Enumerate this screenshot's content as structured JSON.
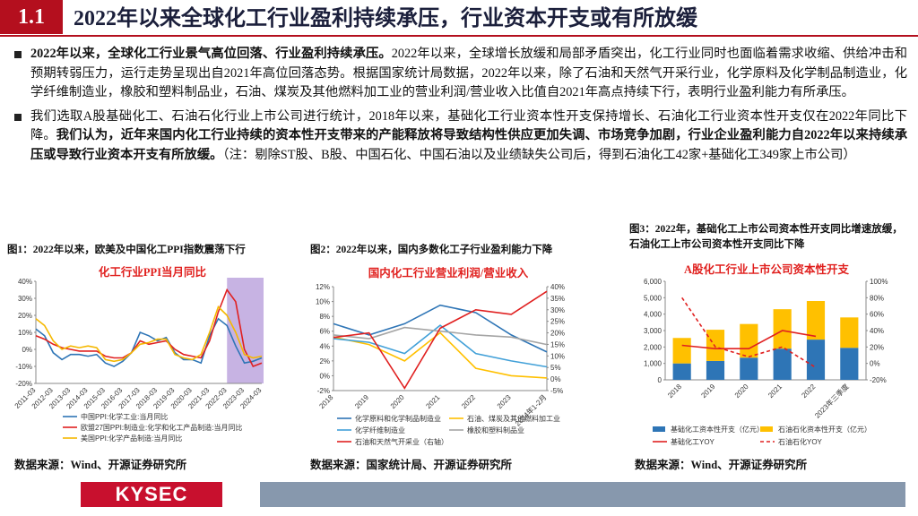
{
  "header": {
    "number": "1.1",
    "title": "2022年以来全球化工行业盈利持续承压，行业资本开支或有所放缓"
  },
  "bullets": [
    {
      "runs": [
        {
          "text": "2022年以来，全球化工行业景气高位回落、行业盈利持续承压。",
          "bold": true
        },
        {
          "text": "2022年以来，全球增长放缓和局部矛盾突出，化工行业同时也面临着需求收缩、供给冲击和预期转弱压力，运行走势呈现出自2021年高位回落态势。根据国家统计局数据，2022年以来，除了石油和天然气开采行业，化学原料及化学制品制造业，化学纤维制造业，橡胶和塑料制品业，石油、煤炭及其他燃料加工业的营业利润/营业收入比值自2021年高点持续下行，表明行业盈利能力有所承压。",
          "bold": false
        }
      ]
    },
    {
      "runs": [
        {
          "text": "我们选取A股基础化工、石油石化行业上市公司进行统计，2018年以来，基础化工行业资本性开支保持增长、石油化工行业资本性开支仅在2022年同比下降。",
          "bold": false
        },
        {
          "text": "我们认为，近年来国内化工行业持续的资本性开支带来的产能释放将导致结构性供应更加失调、市场竞争加剧，行业企业盈利能力自2022年以来持续承压或导致行业资本开支有所放缓。",
          "bold": true
        },
        {
          "text": "（注：剔除ST股、B股、中国石化、中国石油以及业绩缺失公司后，得到石油化工42家+基础化工349家上市公司）",
          "bold": false
        }
      ]
    }
  ],
  "chart_data": [
    {
      "type": "line",
      "caption": "图1：2022年以来，欧美及中国化工PPI指数震荡下行",
      "title": "化工行业PPI当月同比",
      "categories": [
        "2011-03",
        null,
        "2012-03",
        null,
        "2013-03",
        null,
        "2014-03",
        null,
        "2015-03",
        null,
        "2016-03",
        null,
        "2017-03",
        null,
        "2018-03",
        null,
        "2019-03",
        null,
        "2020-03",
        null,
        "2021-03",
        null,
        "2022-03",
        null,
        "2023-03",
        null,
        "2024-03"
      ],
      "series": [
        {
          "name": "中国PPI:化学工业:当月同比",
          "color": "#2e75b6",
          "values": [
            12,
            8,
            -2,
            -6,
            -3,
            -3,
            -4,
            -3,
            -8,
            -10,
            -7,
            -2,
            10,
            8,
            5,
            7,
            -2,
            -6,
            -6,
            -8,
            8,
            18,
            14,
            2,
            -8,
            -7,
            -5
          ]
        },
        {
          "name": "欧盟27国PPI:制造业:化学和化工产品制造:当月同比",
          "color": "#e02020",
          "values": [
            8,
            6,
            3,
            1,
            0,
            -1,
            -1,
            -1,
            -4,
            -5,
            -5,
            -2,
            5,
            3,
            4,
            5,
            0,
            -3,
            -4,
            -5,
            5,
            22,
            35,
            28,
            0,
            -10,
            -8
          ]
        },
        {
          "name": "美国PPI:化学产品制造:当月同比",
          "color": "#f5b800",
          "values": [
            18,
            14,
            5,
            0,
            2,
            1,
            2,
            1,
            -6,
            -7,
            -6,
            -2,
            3,
            4,
            6,
            6,
            -3,
            -5,
            -6,
            -3,
            10,
            25,
            20,
            10,
            -3,
            -5,
            -4
          ]
        }
      ],
      "highlight": {
        "from": "2022-03",
        "to": "2024-03",
        "color": "#c7b3e3"
      },
      "ylim": [
        -20,
        40
      ],
      "yticks": [
        {
          "value": -20,
          "label": "-20%"
        },
        {
          "value": -10,
          "label": "-10%"
        },
        {
          "value": 0,
          "label": "0%"
        },
        {
          "value": 10,
          "label": "10%"
        },
        {
          "value": 20,
          "label": "20%"
        },
        {
          "value": 30,
          "label": "30%"
        },
        {
          "value": 40,
          "label": "40%"
        }
      ],
      "grid": false,
      "source": "数据来源：Wind、开源证券研究所"
    },
    {
      "type": "line",
      "caption": "图2：2022年以来，国内多数化工子行业盈利能力下降",
      "title": "国内化工行业营业利润/营业收入",
      "categories": [
        "2018",
        "2019",
        "2020",
        "2021",
        "2022",
        "2023",
        "2024年1-2月"
      ],
      "series": [
        {
          "name": "化学原料和化学制品制造业",
          "color": "#2e75b6",
          "values": [
            7.0,
            5.5,
            7.0,
            9.5,
            8.5,
            5.5,
            3.2
          ]
        },
        {
          "name": "石油、煤炭及其他燃料加工业",
          "color": "#ffc000",
          "values": [
            5.2,
            4.2,
            2.0,
            5.8,
            1.0,
            0.0,
            -0.3
          ]
        },
        {
          "name": "化学纤维制造业",
          "color": "#41a0d8",
          "values": [
            5.0,
            4.5,
            3.0,
            6.8,
            3.0,
            2.0,
            1.2
          ]
        },
        {
          "name": "橡胶和塑料制品业",
          "color": "#a5a5a5",
          "values": [
            5.5,
            5.0,
            6.5,
            6.0,
            5.5,
            5.2,
            4.2
          ]
        },
        {
          "name": "石油和天然气开采业（右轴）",
          "color": "#e02020",
          "axis": "y2",
          "values": [
            18,
            20,
            -4,
            22,
            30,
            28,
            38
          ]
        }
      ],
      "ylim": [
        -2,
        12
      ],
      "yticks": [
        {
          "value": -2,
          "label": "-2%"
        },
        {
          "value": 0,
          "label": "0%"
        },
        {
          "value": 2,
          "label": "2%"
        },
        {
          "value": 4,
          "label": "4%"
        },
        {
          "value": 6,
          "label": "6%"
        },
        {
          "value": 8,
          "label": "8%"
        },
        {
          "value": 10,
          "label": "10%"
        },
        {
          "value": 12,
          "label": "12%"
        }
      ],
      "y2lim": [
        -5,
        40
      ],
      "y2ticks": [
        {
          "value": -5,
          "label": "-5%"
        },
        {
          "value": 0,
          "label": "0%"
        },
        {
          "value": 5,
          "label": "5%"
        },
        {
          "value": 10,
          "label": "10%"
        },
        {
          "value": 15,
          "label": "15%"
        },
        {
          "value": 20,
          "label": "20%"
        },
        {
          "value": 25,
          "label": "25%"
        },
        {
          "value": 30,
          "label": "30%"
        },
        {
          "value": 35,
          "label": "35%"
        },
        {
          "value": 40,
          "label": "40%"
        }
      ],
      "grid": false,
      "source": "数据来源：国家统计局、开源证券研究所"
    },
    {
      "type": "bar",
      "caption": "图3：2022年，基础化工上市公司资本性开支同比增速放缓，石油化工上市公司资本性开支同比下降",
      "title": "A股化工行业上市公司资本性开支",
      "categories": [
        "2018",
        "2019",
        "2020",
        "2021",
        "2022",
        "2023年三季度"
      ],
      "stacked": true,
      "series": [
        {
          "name": "基础化工资本性开支（亿元）",
          "color": "#2e75b6",
          "values": [
            1000,
            1150,
            1350,
            1900,
            2450,
            1950
          ]
        },
        {
          "name": "石油石化资本性开支（亿元）",
          "color": "#ffc000",
          "values": [
            1550,
            1900,
            2050,
            2400,
            2350,
            1850
          ]
        },
        {
          "name": "基础化工YOY",
          "color": "#e02020",
          "type": "line",
          "axis": "y2",
          "values": [
            22,
            18,
            18,
            40,
            33,
            null
          ]
        },
        {
          "name": "石油石化YOY",
          "color": "#e02020",
          "type": "line",
          "dashed": true,
          "axis": "y2",
          "values": [
            80,
            20,
            8,
            20,
            -5,
            null
          ]
        }
      ],
      "ylim": [
        0,
        6000
      ],
      "yticks": [
        0,
        {
          "value": 1000,
          "label": "1,000"
        },
        {
          "value": 2000,
          "label": "2,000"
        },
        {
          "value": 3000,
          "label": "3,000"
        },
        {
          "value": 4000,
          "label": "4,000"
        },
        {
          "value": 5000,
          "label": "5,000"
        },
        {
          "value": 6000,
          "label": "6,000"
        }
      ],
      "y2lim": [
        -20,
        100
      ],
      "y2ticks": [
        {
          "value": -20,
          "label": "-20%"
        },
        {
          "value": 0,
          "label": "0%"
        },
        {
          "value": 20,
          "label": "20%"
        },
        {
          "value": 40,
          "label": "40%"
        },
        {
          "value": 60,
          "label": "60%"
        },
        {
          "value": 80,
          "label": "80%"
        },
        {
          "value": 100,
          "label": "100%"
        }
      ],
      "grid": false,
      "source": "数据来源：Wind、开源证券研究所"
    }
  ],
  "footer": {
    "logo": "KYSEC"
  }
}
